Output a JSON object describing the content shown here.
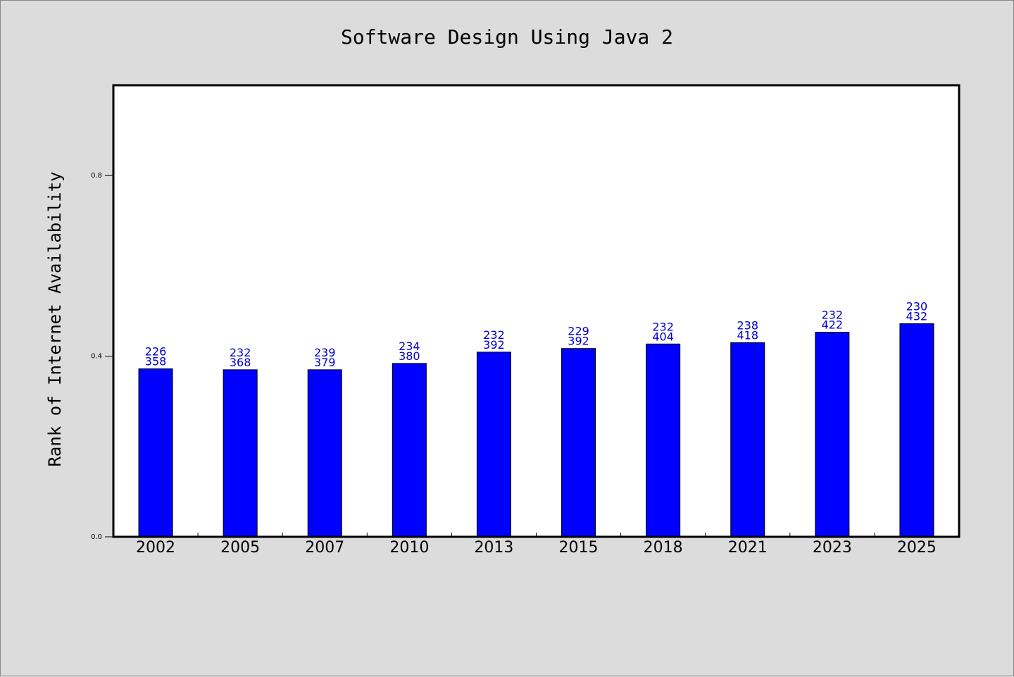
{
  "chart_data": {
    "type": "bar",
    "title": "Software Design Using Java 2",
    "xlabel": "",
    "ylabel": "Rank of Internet Availability",
    "categories": [
      "2002",
      "2005",
      "2007",
      "2010",
      "2013",
      "2015",
      "2018",
      "2021",
      "2023",
      "2025"
    ],
    "values": [
      0.372,
      0.37,
      0.37,
      0.384,
      0.409,
      0.417,
      0.427,
      0.43,
      0.453,
      0.472
    ],
    "label_top": [
      "226",
      "232",
      "239",
      "234",
      "232",
      "229",
      "232",
      "238",
      "232",
      "230"
    ],
    "label_bottom": [
      "358",
      "368",
      "379",
      "380",
      "392",
      "392",
      "404",
      "418",
      "422",
      "432"
    ],
    "yticks": [
      0.0,
      0.4,
      0.8
    ],
    "ytick_labels": [
      "0.0",
      "0.4",
      "0.8"
    ],
    "ylim": [
      0,
      1.0
    ],
    "grid": false,
    "legend": "none",
    "colors": {
      "bar": "#0000ff",
      "bar_edge": "#000000",
      "data_label": "#0000cc",
      "background": "#dcdcdc",
      "plot_area": "#ffffff"
    }
  }
}
